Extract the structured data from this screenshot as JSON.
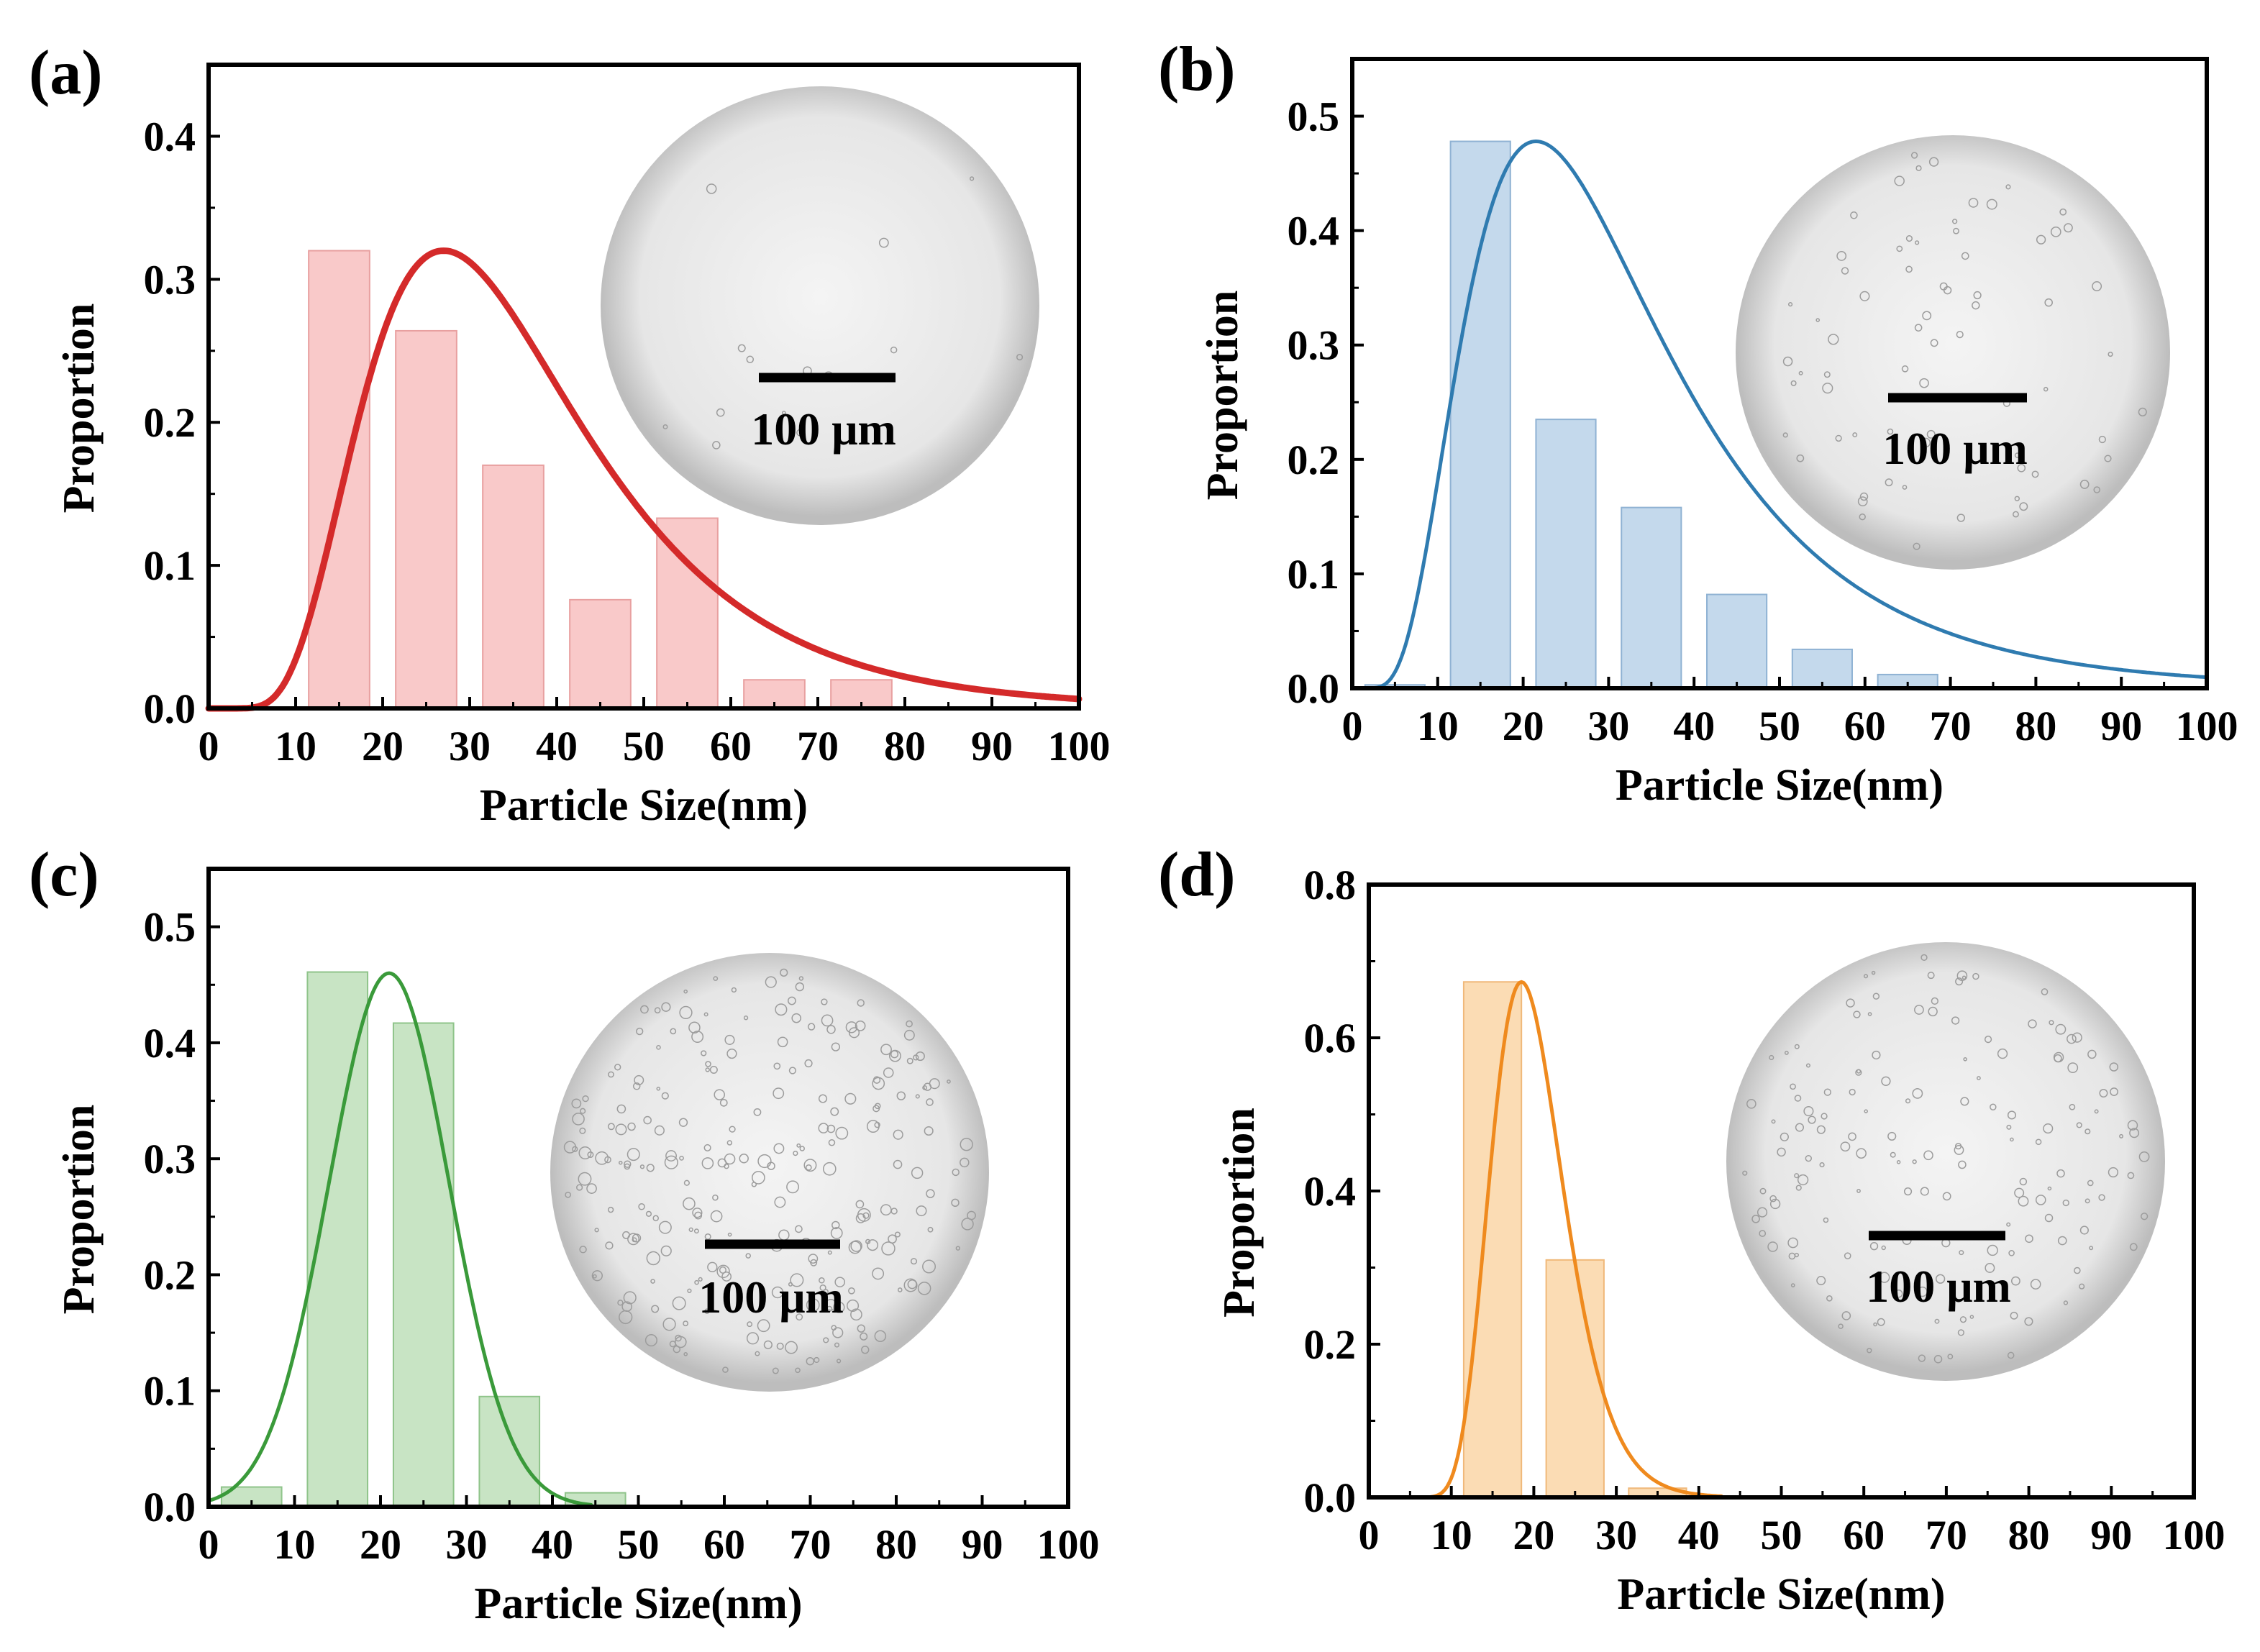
{
  "chart_data": [
    {
      "panel_label": "(a)",
      "type": "bar",
      "xlabel": "Particle Size(nm)",
      "ylabel": "Proportion",
      "xlim": [
        0,
        100
      ],
      "ylim": [
        0,
        0.45
      ],
      "xticks": [
        0,
        10,
        20,
        30,
        40,
        50,
        60,
        70,
        80,
        90,
        100
      ],
      "yticks": [
        0.0,
        0.1,
        0.2,
        0.3,
        0.4
      ],
      "bin_width": 7,
      "bin_centers": [
        15,
        25,
        35,
        45,
        55,
        65,
        75
      ],
      "values": [
        0.32,
        0.264,
        0.17,
        0.076,
        0.133,
        0.02,
        0.02
      ],
      "bar_color": "#f9c9c9",
      "bar_edge": "#e8a0a0",
      "fit": {
        "type": "lognormal",
        "peak_x": 27,
        "peak_y": 0.32,
        "sigma": 0.47,
        "color": "#d42a2a"
      },
      "inset_scale_label": "100 μm"
    },
    {
      "panel_label": "(b)",
      "type": "bar",
      "xlabel": "Particle Size(nm)",
      "ylabel": "Proportion",
      "xlim": [
        0,
        100
      ],
      "ylim": [
        0,
        0.55
      ],
      "xticks": [
        0,
        10,
        20,
        30,
        40,
        50,
        60,
        70,
        80,
        90,
        100
      ],
      "yticks": [
        0.0,
        0.1,
        0.2,
        0.3,
        0.4,
        0.5
      ],
      "bin_width": 7,
      "bin_centers": [
        5,
        15,
        25,
        35,
        45,
        55,
        65
      ],
      "values": [
        0.003,
        0.478,
        0.235,
        0.158,
        0.082,
        0.034,
        0.012
      ],
      "bar_color": "#c4d9ec",
      "bar_edge": "#8fb2d3",
      "fit": {
        "type": "lognormal",
        "peak_x": 21.5,
        "peak_y": 0.478,
        "sigma": 0.55,
        "color": "#2f7bb0"
      },
      "inset_scale_label": "100 μm"
    },
    {
      "panel_label": "(c)",
      "type": "bar",
      "xlabel": "Particle Size(nm)",
      "ylabel": "Proportion",
      "xlim": [
        0,
        100
      ],
      "ylim": [
        0,
        0.55
      ],
      "xticks": [
        0,
        10,
        20,
        30,
        40,
        50,
        60,
        70,
        80,
        90,
        100
      ],
      "yticks": [
        0.0,
        0.1,
        0.2,
        0.3,
        0.4,
        0.5
      ],
      "bin_width": 7,
      "bin_centers": [
        5,
        15,
        25,
        35,
        45
      ],
      "values": [
        0.017,
        0.461,
        0.417,
        0.095,
        0.012
      ],
      "bar_color": "#c8e4c4",
      "bar_edge": "#8fc48a",
      "fit": {
        "type": "gaussian",
        "peak_x": 21,
        "peak_y": 0.46,
        "sigma": 7.0,
        "color": "#3a9a3a"
      },
      "inset_scale_label": "100 μm"
    },
    {
      "panel_label": "(d)",
      "type": "bar",
      "xlabel": "Particle Size(nm)",
      "ylabel": "Proportion",
      "xlim": [
        0,
        100
      ],
      "ylim": [
        0,
        0.8
      ],
      "xticks": [
        0,
        10,
        20,
        30,
        40,
        50,
        60,
        70,
        80,
        90,
        100
      ],
      "yticks": [
        0.0,
        0.2,
        0.4,
        0.6,
        0.8
      ],
      "bin_width": 7,
      "bin_centers": [
        15,
        25,
        35
      ],
      "values": [
        0.673,
        0.31,
        0.012
      ],
      "bar_color": "#fbdcb4",
      "bar_edge": "#f0b97a",
      "fit": {
        "type": "lognormal",
        "peak_x": 18.5,
        "peak_y": 0.673,
        "sigma": 0.24,
        "color": "#ef8a1e"
      },
      "inset_scale_label": "100 μm"
    }
  ]
}
